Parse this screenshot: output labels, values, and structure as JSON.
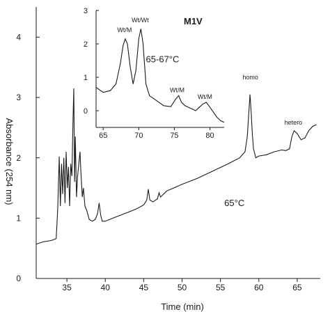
{
  "chart_data": [
    {
      "type": "line",
      "title": "",
      "xlabel": "Time (min)",
      "ylabel": "Absorbance (254 nm)",
      "xlim": [
        31,
        68
      ],
      "ylim": [
        0,
        4.5
      ],
      "x_ticks": [
        {
          "v": 35,
          "label": "35"
        },
        {
          "v": 40,
          "label": "40"
        },
        {
          "v": 45,
          "label": "45"
        },
        {
          "v": 50,
          "label": "50"
        },
        {
          "v": 55,
          "label": "55"
        },
        {
          "v": 60,
          "label": "60"
        },
        {
          "v": 65,
          "label": "65"
        }
      ],
      "y_ticks": [
        {
          "v": 0,
          "label": "0"
        },
        {
          "v": 1,
          "label": "1"
        },
        {
          "v": 2,
          "label": "2"
        },
        {
          "v": 3,
          "label": "3"
        },
        {
          "v": 4,
          "label": "4"
        }
      ],
      "series": [
        {
          "x": [
            31.0,
            32.0,
            33.0,
            33.6,
            33.8,
            34.0,
            34.15,
            34.3,
            34.45,
            34.6,
            34.75,
            34.9,
            35.05,
            35.2,
            35.35,
            35.5,
            35.65,
            35.8,
            35.9,
            36.0,
            36.1,
            36.25,
            36.4,
            36.55,
            36.7,
            36.85,
            37.0,
            37.15,
            37.35,
            37.6,
            37.9,
            38.3,
            38.7,
            39.0,
            39.2,
            39.4,
            39.6,
            40.0,
            41.0,
            42.0,
            43.0,
            44.0,
            45.0,
            45.4,
            45.6,
            45.8,
            46.2,
            46.8,
            47.0,
            47.2,
            48.0,
            50.0,
            52.0,
            54.0,
            56.0,
            57.5,
            58.2,
            58.5,
            58.7,
            58.85,
            59.0,
            59.15,
            59.3,
            59.6,
            60.0,
            61.0,
            62.0,
            63.0,
            63.5,
            64.0,
            64.3,
            64.6,
            65.0,
            65.5,
            66.0,
            66.5,
            67.0,
            67.5
          ],
          "y": [
            0.57,
            0.61,
            0.63,
            0.66,
            1.15,
            2.02,
            1.2,
            1.9,
            1.4,
            2.0,
            1.25,
            2.1,
            1.5,
            1.85,
            1.2,
            1.9,
            1.7,
            2.65,
            3.15,
            1.6,
            2.35,
            1.35,
            1.7,
            1.9,
            2.1,
            1.7,
            1.35,
            1.5,
            1.2,
            1.12,
            0.98,
            0.95,
            0.98,
            1.08,
            1.25,
            1.05,
            0.95,
            0.95,
            1.0,
            1.05,
            1.1,
            1.15,
            1.22,
            1.3,
            1.48,
            1.3,
            1.27,
            1.32,
            1.42,
            1.35,
            1.45,
            1.56,
            1.66,
            1.78,
            1.9,
            2.0,
            2.1,
            2.35,
            2.75,
            3.05,
            2.75,
            2.4,
            2.15,
            2.0,
            2.03,
            2.05,
            2.1,
            2.13,
            2.12,
            2.15,
            2.35,
            2.45,
            2.4,
            2.3,
            2.33,
            2.45,
            2.52,
            2.55
          ]
        }
      ],
      "annotations": [
        {
          "text": "homo",
          "x": 58.9,
          "y": 3.3
        },
        {
          "text": "hetero",
          "x": 64.5,
          "y": 2.55
        },
        {
          "text": "65°C",
          "x": 55.5,
          "y": 1.2
        }
      ]
    },
    {
      "type": "line",
      "title": "M1V",
      "xlabel": "",
      "ylabel": "",
      "xlim": [
        64,
        82
      ],
      "ylim": [
        -0.5,
        3
      ],
      "x_ticks": [
        {
          "v": 65,
          "label": "65"
        },
        {
          "v": 70,
          "label": "70"
        },
        {
          "v": 75,
          "label": "75"
        },
        {
          "v": 80,
          "label": "80"
        }
      ],
      "y_ticks": [
        {
          "v": 0,
          "label": "0"
        },
        {
          "v": 1,
          "label": "1"
        },
        {
          "v": 2,
          "label": "2"
        },
        {
          "v": 3,
          "label": "3"
        }
      ],
      "series": [
        {
          "x": [
            64.0,
            64.5,
            65.0,
            66.0,
            66.8,
            67.4,
            67.8,
            68.1,
            68.4,
            68.8,
            69.2,
            69.6,
            70.0,
            70.3,
            70.6,
            71.0,
            71.5,
            72.5,
            73.5,
            74.5,
            75.2,
            75.6,
            76.0,
            76.5,
            77.0,
            77.5,
            78.0,
            78.5,
            79.0,
            79.5,
            80.0,
            80.5,
            81.0,
            81.5,
            82.0
          ],
          "y": [
            0.7,
            0.62,
            0.55,
            0.6,
            0.8,
            1.4,
            1.95,
            2.15,
            2.0,
            1.3,
            0.8,
            1.2,
            2.15,
            2.45,
            2.0,
            0.8,
            0.45,
            0.3,
            0.15,
            0.12,
            0.35,
            0.45,
            0.25,
            0.15,
            0.1,
            0.05,
            0.0,
            0.1,
            0.2,
            0.25,
            0.1,
            -0.05,
            -0.2,
            -0.3,
            -0.35
          ]
        }
      ],
      "annotations": [
        {
          "text": "Wt/Wt",
          "x": 70.2,
          "y": 2.65
        },
        {
          "text": "Wt/M",
          "x": 68.0,
          "y": 2.35
        },
        {
          "text": "Wt/M",
          "x": 75.4,
          "y": 0.55
        },
        {
          "text": "Wt/M",
          "x": 79.3,
          "y": 0.35
        },
        {
          "text": "65-67°C",
          "x": 71.0,
          "y": 1.45
        }
      ]
    }
  ]
}
